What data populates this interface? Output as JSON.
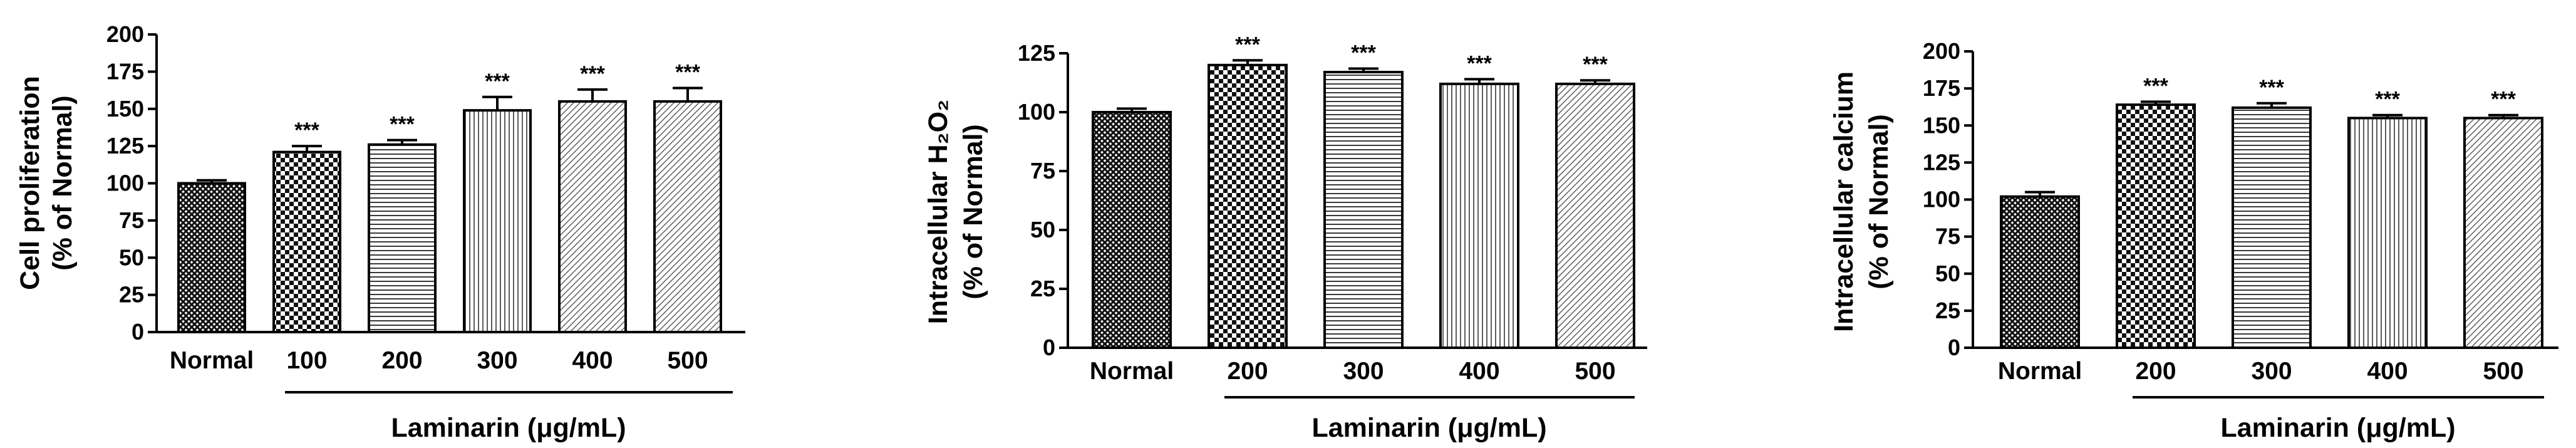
{
  "chart_data": [
    {
      "type": "bar",
      "ylabel_line1": "Cell proliferation",
      "ylabel_line2": "(% of Normal)",
      "xlabel": "Laminarin (μg/mL)",
      "ylim": [
        0,
        200
      ],
      "yticks": [
        0,
        25,
        50,
        75,
        100,
        125,
        150,
        175,
        200
      ],
      "categories": [
        "Normal",
        "100",
        "200",
        "300",
        "400",
        "500"
      ],
      "values": [
        100,
        121,
        126,
        149,
        155,
        155
      ],
      "errors": [
        2,
        4,
        3,
        9,
        8,
        9
      ],
      "significance": [
        "",
        "***",
        "***",
        "***",
        "***",
        "***"
      ],
      "patterns": [
        "crosshatch",
        "checker",
        "hlines",
        "vlines",
        "diag",
        "diag"
      ]
    },
    {
      "type": "bar",
      "ylabel_line1": "Intracellular H₂O₂",
      "ylabel_line2": "(% of Normal)",
      "xlabel": "Laminarin (μg/mL)",
      "ylim": [
        0,
        125
      ],
      "yticks": [
        0,
        25,
        50,
        75,
        100,
        125
      ],
      "categories": [
        "Normal",
        "200",
        "300",
        "400",
        "500"
      ],
      "values": [
        100,
        120,
        117,
        112,
        112
      ],
      "errors": [
        1.5,
        2,
        1.5,
        2,
        1.5
      ],
      "significance": [
        "",
        "***",
        "***",
        "***",
        "***"
      ],
      "patterns": [
        "crosshatch",
        "checker",
        "hlines",
        "vlines",
        "diag"
      ]
    },
    {
      "type": "bar",
      "ylabel_line1": "Intracellular calcium",
      "ylabel_line2": "(% of Normal)",
      "xlabel": "Laminarin (μg/mL)",
      "ylim": [
        0,
        200
      ],
      "yticks": [
        0,
        25,
        50,
        75,
        100,
        125,
        150,
        175,
        200
      ],
      "categories": [
        "Normal",
        "200",
        "300",
        "400",
        "500"
      ],
      "values": [
        102,
        164,
        162,
        155,
        155
      ],
      "errors": [
        3,
        2,
        3,
        2,
        2
      ],
      "significance": [
        "",
        "***",
        "***",
        "***",
        "***"
      ],
      "patterns": [
        "crosshatch",
        "checker",
        "hlines",
        "vlines",
        "diag"
      ]
    }
  ]
}
